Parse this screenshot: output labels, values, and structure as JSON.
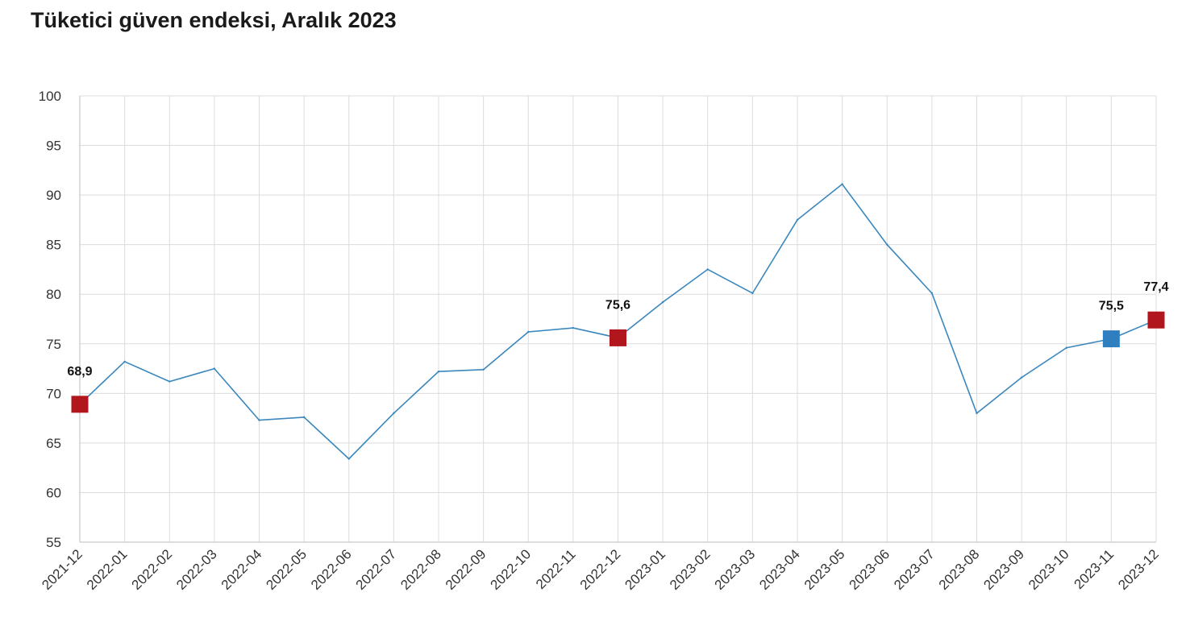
{
  "title": "Tüketici güven endeksi, Aralık 2023",
  "colors": {
    "line": "#3a87bd",
    "highlight_red": "#b0161c",
    "highlight_blue": "#2f7fc0",
    "grid": "#dcdcdc"
  },
  "chart_data": {
    "type": "line",
    "title": "Tüketici güven endeksi, Aralık 2023",
    "xlabel": "",
    "ylabel": "",
    "ylim": [
      55,
      100
    ],
    "yticks": [
      55,
      60,
      65,
      70,
      75,
      80,
      85,
      90,
      95,
      100
    ],
    "grid": true,
    "categories": [
      "2021-12",
      "2022-01",
      "2022-02",
      "2022-03",
      "2022-04",
      "2022-05",
      "2022-06",
      "2022-07",
      "2022-08",
      "2022-09",
      "2022-10",
      "2022-11",
      "2022-12",
      "2023-01",
      "2023-02",
      "2023-03",
      "2023-04",
      "2023-05",
      "2023-06",
      "2023-07",
      "2023-08",
      "2023-09",
      "2023-10",
      "2023-11",
      "2023-12"
    ],
    "series": [
      {
        "values": [
          68.9,
          73.2,
          71.2,
          72.5,
          67.3,
          67.6,
          63.4,
          68.0,
          72.2,
          72.4,
          76.2,
          76.6,
          75.6,
          79.2,
          82.5,
          80.1,
          87.5,
          91.1,
          85.0,
          80.1,
          68.0,
          71.6,
          74.6,
          75.5,
          77.4
        ]
      }
    ],
    "highlights": [
      {
        "category": "2021-12",
        "value": 68.9,
        "label": "68,9",
        "color": "red"
      },
      {
        "category": "2022-12",
        "value": 75.6,
        "label": "75,6",
        "color": "red"
      },
      {
        "category": "2023-11",
        "value": 75.5,
        "label": "75,5",
        "color": "blue"
      },
      {
        "category": "2023-12",
        "value": 77.4,
        "label": "77,4",
        "color": "red"
      }
    ]
  }
}
